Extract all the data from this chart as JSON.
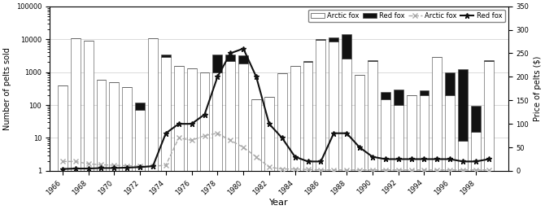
{
  "years": [
    1966,
    1967,
    1968,
    1969,
    1970,
    1971,
    1972,
    1973,
    1974,
    1975,
    1976,
    1977,
    1978,
    1979,
    1980,
    1981,
    1982,
    1983,
    1984,
    1985,
    1986,
    1987,
    1988,
    1989,
    1990,
    1991,
    1992,
    1993,
    1994,
    1995,
    1996,
    1997,
    1998,
    1999
  ],
  "arctic_fox_pelts": [
    400,
    10500,
    9000,
    600,
    500,
    350,
    70,
    10500,
    2800,
    1500,
    1300,
    1000,
    1000,
    2200,
    1800,
    150,
    180,
    900,
    1500,
    2000,
    9500,
    8500,
    2500,
    800,
    2200,
    150,
    100,
    200,
    200,
    2800,
    200,
    8,
    15,
    2200
  ],
  "red_fox_pelts": [
    0,
    0,
    0,
    0,
    0,
    0,
    50,
    0,
    700,
    0,
    0,
    0,
    2500,
    1200,
    1500,
    0,
    0,
    0,
    0,
    150,
    350,
    3000,
    12000,
    0,
    150,
    100,
    200,
    0,
    80,
    0,
    800,
    1200,
    80,
    80
  ],
  "arctic_fox_price": [
    20,
    20,
    15,
    13,
    12,
    11,
    10,
    10,
    12,
    70,
    65,
    75,
    80,
    65,
    50,
    30,
    8,
    4,
    4,
    3,
    2,
    2,
    2,
    2,
    2,
    2,
    2,
    2,
    2,
    2,
    2,
    2,
    2,
    2
  ],
  "red_fox_price": [
    4,
    5,
    5,
    6,
    6,
    7,
    8,
    10,
    80,
    100,
    100,
    120,
    200,
    250,
    260,
    200,
    100,
    70,
    30,
    20,
    20,
    80,
    80,
    50,
    30,
    25,
    25,
    25,
    25,
    25,
    25,
    20,
    20,
    25
  ],
  "ylabel_left": "Number of pelts sold",
  "ylabel_right": "Price of pelts ($)",
  "xlabel": "Year",
  "ylim_right": [
    0,
    350
  ],
  "yticks_right": [
    0,
    50,
    100,
    150,
    200,
    250,
    300,
    350
  ],
  "xtick_years": [
    1966,
    1968,
    1970,
    1972,
    1974,
    1976,
    1978,
    1980,
    1982,
    1984,
    1986,
    1988,
    1990,
    1992,
    1994,
    1996,
    1998
  ],
  "legend_labels": [
    "Arctic fox",
    "Red fox",
    "Arctic fox",
    "Red fox"
  ],
  "bar_color_arctic": "#ffffff",
  "bar_color_red": "#111111",
  "bar_edgecolor": "#444444",
  "line_color_arctic": "#aaaaaa",
  "line_color_red": "#111111",
  "grid_color": "#cccccc"
}
